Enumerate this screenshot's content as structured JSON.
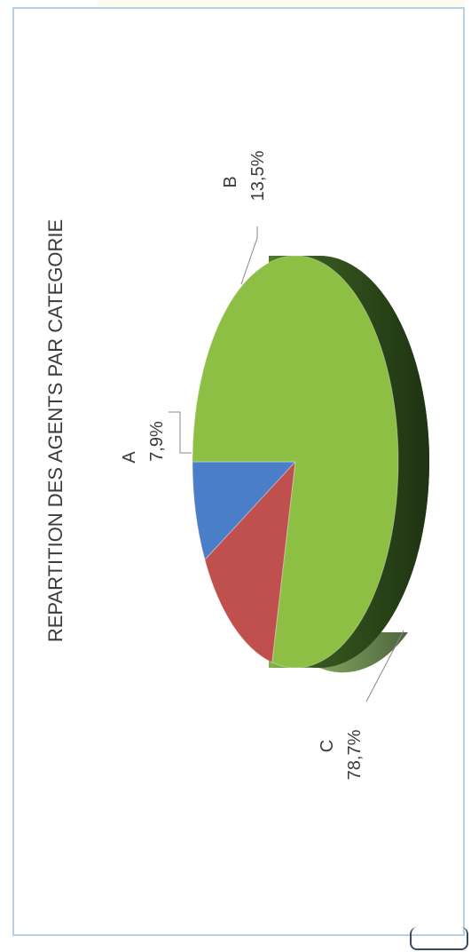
{
  "chart_data": {
    "type": "pie",
    "title": "REPARTITION DES AGENTS PAR CATEGORIE",
    "slices": [
      {
        "label": "A",
        "value": 7.9,
        "value_label": "7,9%",
        "color": "#4a7ec9"
      },
      {
        "label": "B",
        "value": 13.5,
        "value_label": "13,5%",
        "color": "#c0504d"
      },
      {
        "label": "C",
        "value": 78.7,
        "value_label": "78,7%",
        "color": "#8dbf45"
      }
    ],
    "legend": "none",
    "orientation": "rotated-90-clockwise"
  }
}
